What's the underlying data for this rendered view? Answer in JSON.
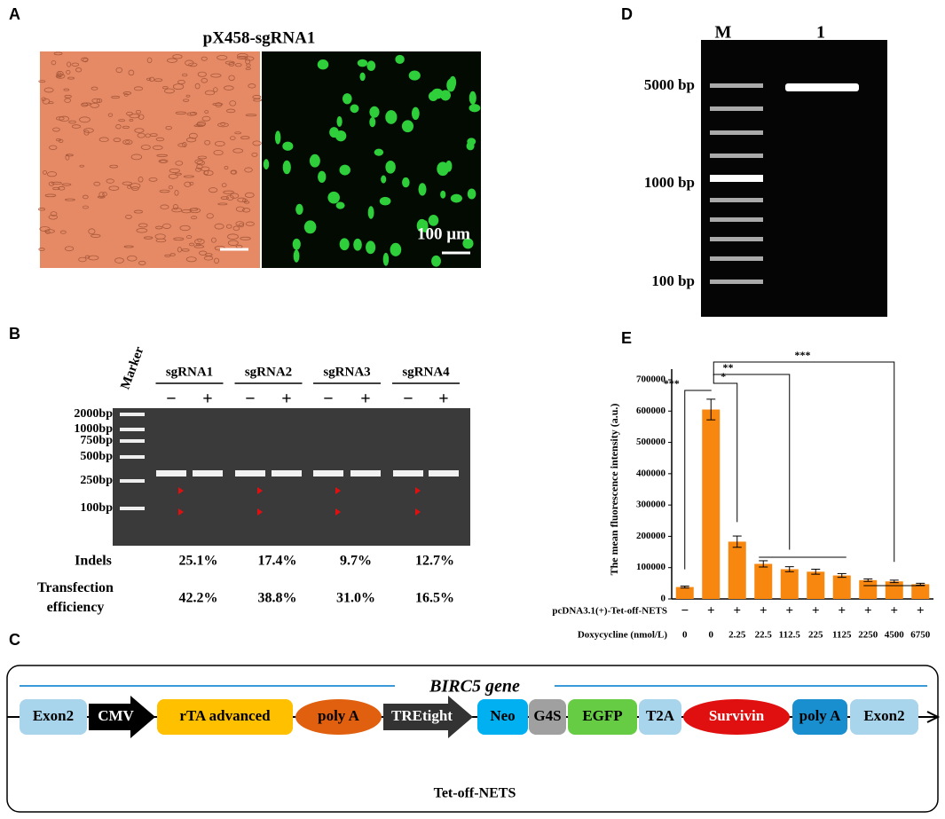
{
  "panel_a": {
    "label": "A",
    "title": "pX458-sgRNA1",
    "scale_bar": "100 µm"
  },
  "panel_b": {
    "label": "B",
    "marker": "Marker",
    "groups": [
      {
        "name": "sgRNA1",
        "signs": [
          "−",
          "+"
        ]
      },
      {
        "name": "sgRNA2",
        "signs": [
          "−",
          "+"
        ]
      },
      {
        "name": "sgRNA3",
        "signs": [
          "−",
          "+"
        ]
      },
      {
        "name": "sgRNA4",
        "signs": [
          "−",
          "+"
        ]
      }
    ],
    "ladder": [
      "2000bp",
      "1000bp",
      "750bp",
      "500bp",
      "250bp",
      "100bp"
    ],
    "rows": [
      {
        "name": "Indels",
        "values": [
          "25.1%",
          "17.4%",
          "9.7%",
          "12.7%"
        ]
      },
      {
        "name": "Transfection efficiency",
        "values": [
          "42.2%",
          "38.8%",
          "31.0%",
          "16.5%"
        ]
      }
    ]
  },
  "panel_c": {
    "label": "C",
    "gene": "BIRC5 gene",
    "elements": [
      "Exon2",
      "CMV",
      "rTA advanced",
      "poly A",
      "TREtight",
      "Neo",
      "G4S",
      "EGFP",
      "T2A",
      "Survivin",
      "poly A",
      "Exon2"
    ],
    "caption": "Tet-off-NETS"
  },
  "panel_d": {
    "label": "D",
    "lanes": [
      "M",
      "1"
    ],
    "ladder": [
      "5000 bp",
      "1000 bp",
      "100 bp"
    ]
  },
  "chart_data": {
    "type": "bar",
    "label": "E",
    "ylabel": "The mean fluorescence intensity (a.u.)",
    "categories": [
      "0",
      "0",
      "2.25",
      "22.5",
      "112.5",
      "225",
      "1125",
      "2250",
      "4500",
      "6750"
    ],
    "category_label": "Doxycycline (nmol/L)",
    "signs_label": "pcDNA3.1(+)-Tet-off-NETS",
    "signs": [
      "−",
      "+",
      "+",
      "+",
      "+",
      "+",
      "+",
      "+",
      "+",
      "+"
    ],
    "values": [
      38000,
      605000,
      183000,
      112000,
      95000,
      87000,
      75000,
      60000,
      56000,
      47000
    ],
    "errors": [
      3000,
      33000,
      18000,
      10000,
      8000,
      8000,
      6000,
      4000,
      4000,
      3000
    ],
    "color": "#f7870f",
    "ylim": [
      0,
      700000
    ],
    "yticks": [
      0,
      100000,
      200000,
      300000,
      400000,
      500000,
      600000,
      700000
    ],
    "annotations": [
      "***",
      "*",
      "**",
      "***"
    ]
  }
}
